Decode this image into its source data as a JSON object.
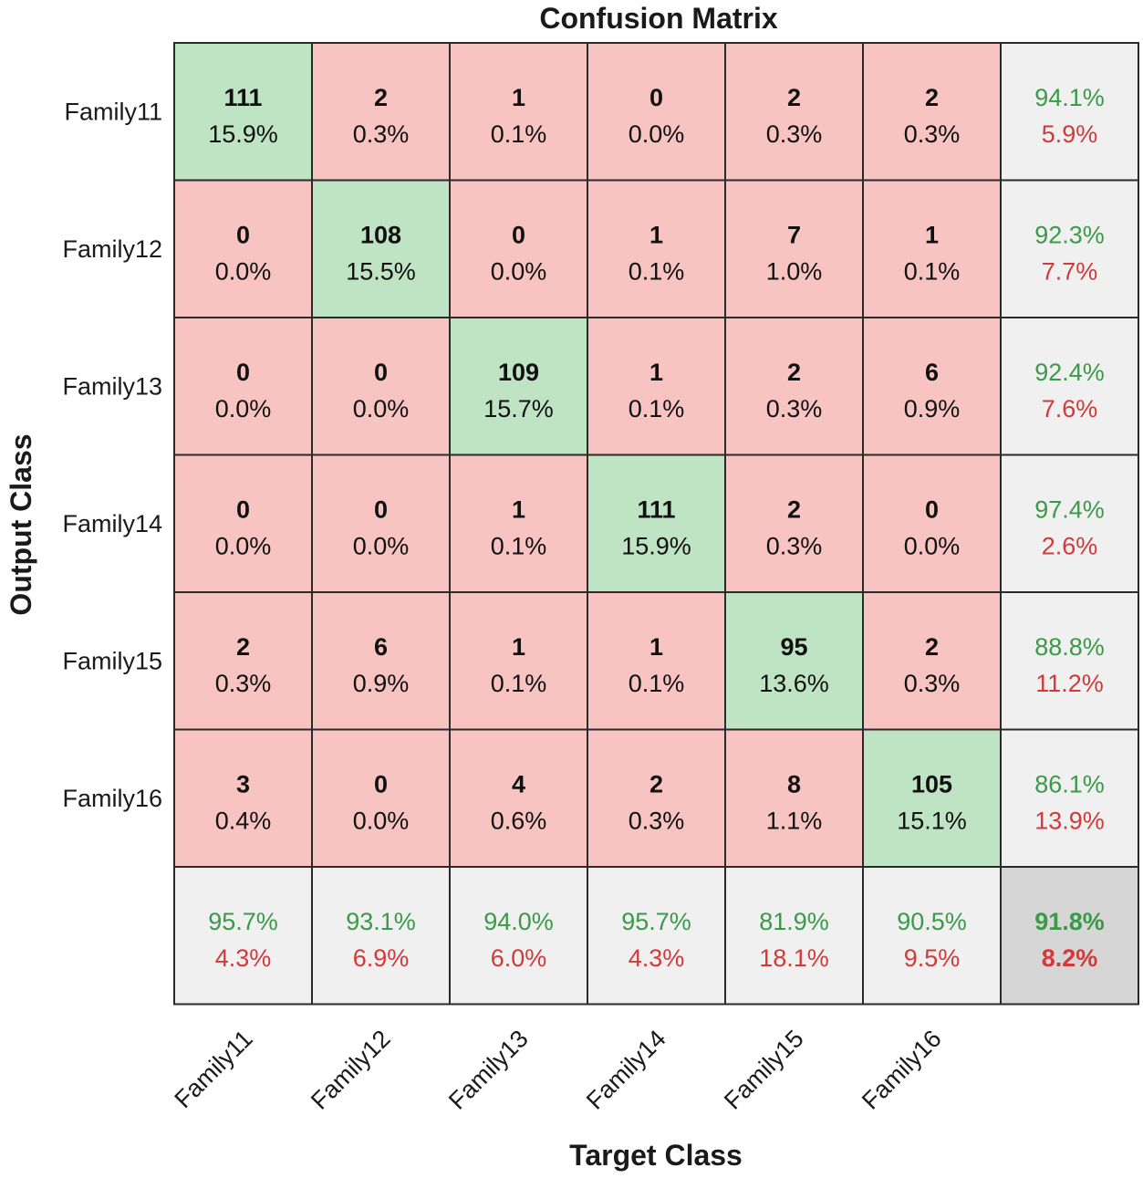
{
  "colors": {
    "correct_cell": "#bfe4c3",
    "wrong_cell": "#f7c4c1",
    "summary_cell": "#f0f0f0",
    "overall_cell": "#d6d6d6",
    "grid_line": "#2a2a2a",
    "good_text": "#3a9a48",
    "bad_text": "#d23a3a"
  },
  "chart_data": {
    "type": "heatmap",
    "title": "Confusion Matrix",
    "xlabel": "Target Class",
    "ylabel": "Output Class",
    "row_labels": [
      "Family11",
      "Family12",
      "Family13",
      "Family14",
      "Family15",
      "Family16"
    ],
    "col_labels": [
      "Family11",
      "Family12",
      "Family13",
      "Family14",
      "Family15",
      "Family16"
    ],
    "counts": [
      [
        111,
        2,
        1,
        0,
        2,
        2
      ],
      [
        0,
        108,
        0,
        1,
        7,
        1
      ],
      [
        0,
        0,
        109,
        1,
        2,
        6
      ],
      [
        0,
        0,
        1,
        111,
        2,
        0
      ],
      [
        2,
        6,
        1,
        1,
        95,
        2
      ],
      [
        3,
        0,
        4,
        2,
        8,
        105
      ]
    ],
    "percents": [
      [
        "15.9%",
        "0.3%",
        "0.1%",
        "0.0%",
        "0.3%",
        "0.3%"
      ],
      [
        "0.0%",
        "15.5%",
        "0.0%",
        "0.1%",
        "1.0%",
        "0.1%"
      ],
      [
        "0.0%",
        "0.0%",
        "15.7%",
        "0.1%",
        "0.3%",
        "0.9%"
      ],
      [
        "0.0%",
        "0.0%",
        "0.1%",
        "15.9%",
        "0.3%",
        "0.0%"
      ],
      [
        "0.3%",
        "0.9%",
        "0.1%",
        "0.1%",
        "13.6%",
        "0.3%"
      ],
      [
        "0.4%",
        "0.0%",
        "0.6%",
        "0.3%",
        "1.1%",
        "15.1%"
      ]
    ],
    "row_summary": [
      [
        "94.1%",
        "5.9%"
      ],
      [
        "92.3%",
        "7.7%"
      ],
      [
        "92.4%",
        "7.6%"
      ],
      [
        "97.4%",
        "2.6%"
      ],
      [
        "88.8%",
        "11.2%"
      ],
      [
        "86.1%",
        "13.9%"
      ]
    ],
    "col_summary": [
      [
        "95.7%",
        "4.3%"
      ],
      [
        "93.1%",
        "6.9%"
      ],
      [
        "94.0%",
        "6.0%"
      ],
      [
        "95.7%",
        "4.3%"
      ],
      [
        "81.9%",
        "18.1%"
      ],
      [
        "90.5%",
        "9.5%"
      ]
    ],
    "overall": [
      "91.8%",
      "8.2%"
    ]
  }
}
